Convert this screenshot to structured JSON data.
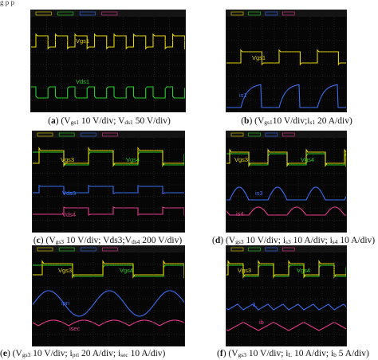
{
  "top_text": "g    p    p",
  "colors": {
    "yellow": "#e6d600",
    "green": "#28d028",
    "blue": "#3b6ef5",
    "pink": "#e83a8c",
    "grid": "#2e2e2e",
    "bg": "#060606"
  },
  "panels": [
    {
      "id": "a",
      "caption": {
        "letter": "a",
        "text": "V",
        "sub1": "gs1",
        "mid1": " 10 V/div; V",
        "sub2": "ds1",
        "mid2": " 50 V/div)",
        "sub3": "",
        "tail": ""
      },
      "traces": [
        {
          "name": "Vgs1",
          "color": "yellow"
        },
        {
          "name": "Vds1",
          "color": "green"
        }
      ]
    },
    {
      "id": "b",
      "caption": {
        "letter": "b",
        "text": "V",
        "sub1": "gs1",
        "mid1": "10 V/div;i",
        "sub2": "s1",
        "mid2": " 20 A/div)",
        "sub3": "",
        "tail": ""
      },
      "traces": [
        {
          "name": "Vgs1",
          "color": "yellow"
        },
        {
          "name": "is1",
          "color": "blue"
        }
      ]
    },
    {
      "id": "c",
      "caption": {
        "letter": "c",
        "text": "V",
        "sub1": "gs3",
        "mid1": " 10 V/div; Vds3;V",
        "sub2": "ds4",
        "mid2": " 200 V/div)",
        "sub3": "",
        "tail": ""
      },
      "traces": [
        {
          "name": "Vgs3",
          "color": "yellow"
        },
        {
          "name": "Vgs4",
          "color": "green"
        },
        {
          "name": "Vds3",
          "color": "blue"
        },
        {
          "name": "Vds4",
          "color": "pink"
        }
      ]
    },
    {
      "id": "d",
      "caption": {
        "letter": "d",
        "text": "V",
        "sub1": "gs3",
        "mid1": " 10 V/div; i",
        "sub2": "s3",
        "mid2": " 10 A/div; i",
        "sub3": "s4",
        "tail": " 10 A/div)"
      },
      "traces": [
        {
          "name": "Vgs3",
          "color": "yellow"
        },
        {
          "name": "Vgs4",
          "color": "green"
        },
        {
          "name": "is3",
          "color": "blue"
        },
        {
          "name": "is4",
          "color": "pink"
        }
      ]
    },
    {
      "id": "e",
      "caption": {
        "letter": "e",
        "text": "V",
        "sub1": "gs3",
        "mid1": " 10 V/div; i",
        "sub2": "pri",
        "mid2": " 20 A/div; i",
        "sub3": "sec",
        "tail": " 10 A/div)"
      },
      "traces": [
        {
          "name": "Vgs3",
          "color": "yellow"
        },
        {
          "name": "Vgs4",
          "color": "green"
        },
        {
          "name": "ipri",
          "color": "blue"
        },
        {
          "name": "isec",
          "color": "pink"
        }
      ]
    },
    {
      "id": "f",
      "caption": {
        "letter": "f",
        "text": "V",
        "sub1": "gs3",
        "mid1": " 10 V/div; i",
        "sub2": "L",
        "mid2": " 10 A/div; i",
        "sub3": "b",
        "tail": " 5 A/div)"
      },
      "traces": [
        {
          "name": "Vgs3",
          "color": "yellow"
        },
        {
          "name": "Vgs4",
          "color": "green"
        },
        {
          "name": "iL",
          "color": "blue"
        },
        {
          "name": "ib",
          "color": "pink"
        }
      ]
    }
  ]
}
